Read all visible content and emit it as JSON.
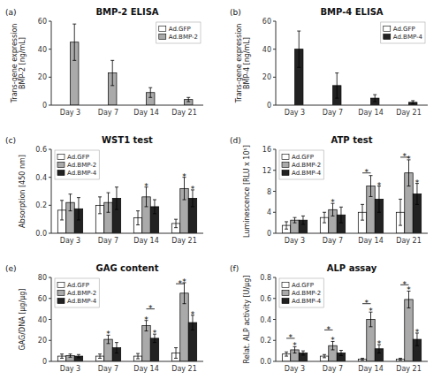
{
  "chart_data": [
    {
      "type": "bar",
      "title": "BMP-2 ELISA",
      "panel_label": "(a)",
      "categories": [
        "Day 3",
        "Day 7",
        "Day 14",
        "Day 21"
      ],
      "ylabel": "Trans-gene expression\nBMP-2 [ng/mL]",
      "ylim": [
        0,
        60
      ],
      "yticks": [
        0,
        20,
        40,
        60
      ],
      "grid": false,
      "legend": "upper right",
      "series": [
        {
          "name": "Ad.GFP",
          "color": "#ffffff",
          "values": [
            0,
            0,
            0,
            0
          ]
        },
        {
          "name": "Ad.BMP-2",
          "color": "#aaaaaa",
          "values": [
            45,
            23,
            9,
            4
          ],
          "errors": [
            13,
            9,
            3.5,
            1.5
          ]
        }
      ],
      "annotations": []
    },
    {
      "type": "bar",
      "title": "BMP-4 ELISA",
      "panel_label": "(b)",
      "categories": [
        "Day 3",
        "Day 7",
        "Day 14",
        "Day 21"
      ],
      "ylabel": "Trans-gene expression\nBMP-4 [ng/mL]",
      "ylim": [
        0,
        60
      ],
      "yticks": [
        0,
        20,
        40,
        60
      ],
      "grid": false,
      "legend": "upper right",
      "series": [
        {
          "name": "Ad.GFP",
          "color": "#ffffff",
          "values": [
            0,
            0,
            0,
            0
          ]
        },
        {
          "name": "Ad.BMP-4",
          "color": "#222222",
          "values": [
            40,
            14,
            5,
            2
          ],
          "errors": [
            13,
            9,
            2.5,
            1.2
          ]
        }
      ],
      "annotations": []
    },
    {
      "type": "bar",
      "title": "WST1 test",
      "panel_label": "(c)",
      "categories": [
        "Day 3",
        "Day 7",
        "Day 14",
        "Day 21"
      ],
      "ylabel": "Absorption [450 nm]",
      "ylim": [
        0,
        0.6
      ],
      "yticks": [
        {
          "value": 0,
          "label": "0.0"
        },
        0.2,
        0.4,
        0.6
      ],
      "grid": false,
      "legend": "upper left",
      "series": [
        {
          "name": "Ad.GFP",
          "color": "#ffffff",
          "values": [
            0.165,
            0.2,
            0.11,
            0.07
          ],
          "errors": [
            0.07,
            0.06,
            0.05,
            0.03
          ]
        },
        {
          "name": "Ad.BMP-2",
          "color": "#aaaaaa",
          "values": [
            0.22,
            0.22,
            0.26,
            0.32
          ],
          "errors": [
            0.06,
            0.07,
            0.07,
            0.08
          ]
        },
        {
          "name": "Ad.BMP-4",
          "color": "#222222",
          "values": [
            0.175,
            0.25,
            0.19,
            0.25
          ],
          "errors": [
            0.08,
            0.08,
            0.05,
            0.06
          ]
        }
      ],
      "annotations": [
        {
          "text": "*",
          "category": 2,
          "series": 1
        },
        {
          "text": "*",
          "category": 3,
          "series": 1
        },
        {
          "text": "*",
          "category": 3,
          "series": 2
        }
      ]
    },
    {
      "type": "bar",
      "title": "ATP test",
      "panel_label": "(d)",
      "categories": [
        "Day 3",
        "Day 7",
        "Day 14",
        "Day 21"
      ],
      "ylabel": "Luminescence [RLU x 10⁵]",
      "ylim": [
        0,
        16
      ],
      "yticks": [
        0,
        4,
        8,
        12,
        16
      ],
      "grid": false,
      "legend": "upper left",
      "series": [
        {
          "name": "Ad.GFP",
          "color": "#ffffff",
          "values": [
            1.5,
            3.0,
            4.0,
            4.0
          ],
          "errors": [
            0.7,
            1.0,
            1.5,
            2.5
          ]
        },
        {
          "name": "Ad.BMP-2",
          "color": "#aaaaaa",
          "values": [
            2.5,
            4.5,
            9.0,
            11.5
          ],
          "errors": [
            0.5,
            1.2,
            2.0,
            2.5
          ]
        },
        {
          "name": "Ad.BMP-4",
          "color": "#222222",
          "values": [
            2.5,
            3.5,
            6.5,
            7.5
          ],
          "errors": [
            0.8,
            1.5,
            2.5,
            2.0
          ]
        }
      ],
      "annotations": [
        {
          "text": "*",
          "category": 1,
          "series": 1
        },
        {
          "text": "*",
          "category": 2,
          "series": [
            0,
            1
          ],
          "y": 11.5
        },
        {
          "text": "*",
          "category": 2,
          "series": 2
        },
        {
          "text": "*",
          "category": 3,
          "series": [
            0,
            1
          ],
          "y": 14.5
        },
        {
          "text": "*",
          "category": 3,
          "series": 1
        },
        {
          "text": "*",
          "category": 3,
          "series": 2
        }
      ]
    },
    {
      "type": "bar",
      "title": "GAG content",
      "panel_label": "(e)",
      "categories": [
        "Day 3",
        "Day 7",
        "Day 14",
        "Day 21"
      ],
      "ylabel": "GAG/DNA [μg/μg]",
      "ylim": [
        0,
        80
      ],
      "yticks": [
        0,
        20,
        40,
        60,
        80
      ],
      "grid": false,
      "legend": "upper left",
      "series": [
        {
          "name": "Ad.GFP",
          "color": "#ffffff",
          "values": [
            5,
            5,
            5,
            8
          ],
          "errors": [
            2,
            2,
            2.5,
            5
          ]
        },
        {
          "name": "Ad.BMP-2",
          "color": "#aaaaaa",
          "values": [
            5.5,
            21,
            34,
            65
          ],
          "errors": [
            1.5,
            4,
            5,
            10
          ]
        },
        {
          "name": "Ad.BMP-4",
          "color": "#222222",
          "values": [
            5,
            13,
            22,
            37
          ],
          "errors": [
            1.5,
            5,
            4,
            7
          ]
        }
      ],
      "annotations": [
        {
          "text": "*",
          "category": 1,
          "series": 1
        },
        {
          "text": "*",
          "category": 2,
          "series": [
            1,
            2
          ],
          "y": 50
        },
        {
          "text": "*",
          "category": 2,
          "series": 1
        },
        {
          "text": "*",
          "category": 2,
          "series": 2
        },
        {
          "text": "*",
          "category": 3,
          "series": [
            0,
            1
          ],
          "y": 74
        },
        {
          "text": "*",
          "category": 3,
          "series": 1
        },
        {
          "text": "*",
          "category": 3,
          "series": 2
        }
      ]
    },
    {
      "type": "bar",
      "title": "ALP assay",
      "panel_label": "(f)",
      "categories": [
        "Day 3",
        "Day 7",
        "Day 14",
        "Day 21"
      ],
      "ylabel": "Relat. ALP activity [U/μg]",
      "ylim": [
        0,
        0.8
      ],
      "yticks": [
        {
          "value": 0,
          "label": "0.0"
        },
        0.2,
        0.4,
        0.6,
        0.8
      ],
      "grid": false,
      "legend": "upper left",
      "series": [
        {
          "name": "Ad.GFP",
          "color": "#ffffff",
          "values": [
            0.07,
            0.05,
            0.02,
            0.02
          ],
          "errors": [
            0.02,
            0.015,
            0.01,
            0.01
          ]
        },
        {
          "name": "Ad.BMP-2",
          "color": "#aaaaaa",
          "values": [
            0.11,
            0.15,
            0.4,
            0.59
          ],
          "errors": [
            0.03,
            0.04,
            0.07,
            0.08
          ]
        },
        {
          "name": "Ad.BMP-4",
          "color": "#222222",
          "values": [
            0.08,
            0.08,
            0.12,
            0.21
          ],
          "errors": [
            0.02,
            0.025,
            0.04,
            0.06
          ]
        }
      ],
      "annotations": [
        {
          "text": "*",
          "category": 0,
          "series": [
            0,
            1
          ],
          "y": 0.22
        },
        {
          "text": "*",
          "category": 0,
          "series": 1
        },
        {
          "text": "*",
          "category": 1,
          "series": [
            0,
            1
          ],
          "y": 0.3
        },
        {
          "text": "*",
          "category": 1,
          "series": 1
        },
        {
          "text": "*",
          "category": 2,
          "series": [
            0,
            1
          ],
          "y": 0.55
        },
        {
          "text": "*",
          "category": 2,
          "series": 1
        },
        {
          "text": "*",
          "category": 2,
          "series": 2
        },
        {
          "text": "*",
          "category": 3,
          "series": [
            0,
            1
          ],
          "y": 0.73
        },
        {
          "text": "*",
          "category": 3,
          "series": 1
        },
        {
          "text": "*",
          "category": 3,
          "series": 2
        }
      ]
    }
  ]
}
